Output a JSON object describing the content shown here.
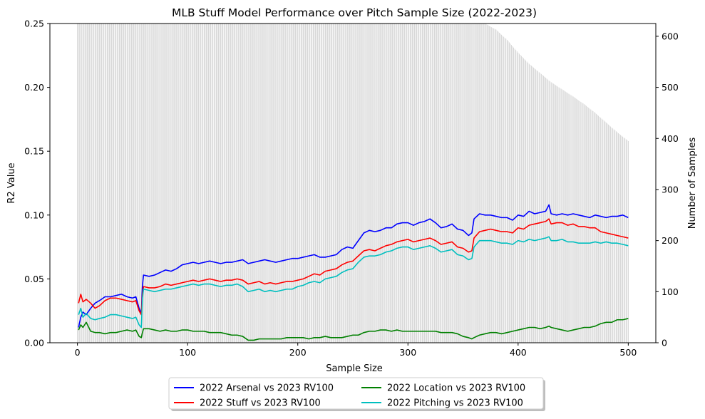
{
  "chart_data": {
    "type": "line",
    "title": "MLB Stuff Model Performance over Pitch Sample Size (2022-2023)",
    "xlabel": "Sample Size",
    "ylabel": "R2 Value",
    "ylabel_right": "Number of Samples",
    "xlim": [
      -25,
      525
    ],
    "ylim": [
      0,
      0.25
    ],
    "ylim_right": [
      0,
      625
    ],
    "x_ticks": [
      0,
      100,
      200,
      300,
      400,
      500
    ],
    "y_ticks": [
      0.0,
      0.05,
      0.1,
      0.15,
      0.2,
      0.25
    ],
    "y_tick_labels": [
      "0.00",
      "0.05",
      "0.10",
      "0.15",
      "0.20",
      "0.25"
    ],
    "y_right_ticks": [
      0,
      100,
      200,
      300,
      400,
      500,
      600
    ],
    "grid": false,
    "legend_placement": "bottom-center",
    "bars": {
      "name": "Number of Samples",
      "color": "#c8c8c8",
      "x": [
        0,
        370,
        380,
        390,
        400,
        410,
        420,
        430,
        440,
        450,
        460,
        470,
        480,
        490,
        500
      ],
      "values": [
        625,
        625,
        613,
        593,
        568,
        546,
        528,
        510,
        496,
        482,
        467,
        450,
        431,
        412,
        395
      ]
    },
    "series": [
      {
        "name": "2022 Arsenal vs 2023 RV100",
        "color": "#0000ff",
        "x": [
          1,
          3,
          5,
          8,
          12,
          16,
          20,
          25,
          30,
          35,
          40,
          45,
          50,
          53,
          56,
          58,
          59,
          60,
          65,
          70,
          75,
          80,
          85,
          90,
          95,
          100,
          105,
          110,
          115,
          120,
          125,
          130,
          135,
          140,
          145,
          150,
          155,
          160,
          165,
          170,
          175,
          180,
          185,
          190,
          195,
          200,
          205,
          210,
          215,
          220,
          225,
          230,
          235,
          240,
          245,
          250,
          255,
          260,
          265,
          270,
          275,
          280,
          285,
          290,
          295,
          300,
          305,
          310,
          315,
          320,
          325,
          330,
          335,
          340,
          345,
          350,
          355,
          358,
          360,
          365,
          370,
          375,
          380,
          385,
          390,
          395,
          400,
          405,
          410,
          415,
          420,
          425,
          428,
          430,
          435,
          440,
          445,
          450,
          455,
          460,
          465,
          470,
          475,
          480,
          485,
          490,
          495,
          500
        ],
        "values": [
          0.012,
          0.02,
          0.024,
          0.022,
          0.027,
          0.031,
          0.033,
          0.036,
          0.036,
          0.037,
          0.038,
          0.036,
          0.035,
          0.036,
          0.027,
          0.023,
          0.045,
          0.053,
          0.052,
          0.053,
          0.055,
          0.057,
          0.056,
          0.058,
          0.061,
          0.062,
          0.063,
          0.062,
          0.063,
          0.064,
          0.063,
          0.062,
          0.063,
          0.063,
          0.064,
          0.065,
          0.062,
          0.063,
          0.064,
          0.065,
          0.064,
          0.063,
          0.064,
          0.065,
          0.066,
          0.066,
          0.067,
          0.068,
          0.069,
          0.067,
          0.067,
          0.068,
          0.069,
          0.073,
          0.075,
          0.074,
          0.08,
          0.086,
          0.088,
          0.087,
          0.088,
          0.09,
          0.09,
          0.093,
          0.094,
          0.094,
          0.092,
          0.094,
          0.095,
          0.097,
          0.094,
          0.09,
          0.091,
          0.093,
          0.089,
          0.088,
          0.084,
          0.086,
          0.097,
          0.101,
          0.1,
          0.1,
          0.099,
          0.098,
          0.098,
          0.096,
          0.1,
          0.099,
          0.103,
          0.101,
          0.102,
          0.103,
          0.108,
          0.101,
          0.1,
          0.101,
          0.1,
          0.101,
          0.1,
          0.099,
          0.098,
          0.1,
          0.099,
          0.098,
          0.099,
          0.099,
          0.1,
          0.098
        ]
      },
      {
        "name": "2022 Stuff vs 2023 RV100",
        "color": "#ff0000",
        "x": [
          1,
          3,
          5,
          8,
          12,
          16,
          20,
          25,
          30,
          35,
          40,
          45,
          50,
          53,
          56,
          58,
          59,
          60,
          65,
          70,
          75,
          80,
          85,
          90,
          95,
          100,
          105,
          110,
          115,
          120,
          125,
          130,
          135,
          140,
          145,
          150,
          155,
          160,
          165,
          170,
          175,
          180,
          185,
          190,
          195,
          200,
          205,
          210,
          215,
          220,
          225,
          230,
          235,
          240,
          245,
          250,
          255,
          260,
          265,
          270,
          275,
          280,
          285,
          290,
          295,
          300,
          305,
          310,
          315,
          320,
          325,
          330,
          335,
          340,
          345,
          350,
          355,
          358,
          360,
          365,
          370,
          375,
          380,
          385,
          390,
          395,
          400,
          405,
          410,
          415,
          420,
          425,
          428,
          430,
          435,
          440,
          445,
          450,
          455,
          460,
          465,
          470,
          475,
          480,
          485,
          490,
          495,
          500
        ],
        "values": [
          0.031,
          0.038,
          0.032,
          0.034,
          0.031,
          0.027,
          0.029,
          0.033,
          0.035,
          0.035,
          0.034,
          0.033,
          0.032,
          0.033,
          0.025,
          0.022,
          0.038,
          0.044,
          0.043,
          0.043,
          0.044,
          0.046,
          0.045,
          0.046,
          0.047,
          0.048,
          0.049,
          0.048,
          0.049,
          0.05,
          0.049,
          0.048,
          0.049,
          0.049,
          0.05,
          0.049,
          0.046,
          0.047,
          0.048,
          0.046,
          0.047,
          0.046,
          0.047,
          0.048,
          0.048,
          0.049,
          0.05,
          0.052,
          0.054,
          0.053,
          0.056,
          0.057,
          0.058,
          0.061,
          0.063,
          0.064,
          0.068,
          0.072,
          0.073,
          0.072,
          0.074,
          0.076,
          0.077,
          0.079,
          0.08,
          0.081,
          0.079,
          0.08,
          0.081,
          0.082,
          0.08,
          0.077,
          0.078,
          0.079,
          0.075,
          0.074,
          0.071,
          0.072,
          0.082,
          0.087,
          0.088,
          0.089,
          0.088,
          0.087,
          0.087,
          0.086,
          0.09,
          0.089,
          0.092,
          0.093,
          0.094,
          0.095,
          0.097,
          0.093,
          0.094,
          0.094,
          0.092,
          0.093,
          0.091,
          0.091,
          0.09,
          0.09,
          0.087,
          0.086,
          0.085,
          0.084,
          0.083,
          0.082
        ]
      },
      {
        "name": "2022 Location vs 2023 RV100",
        "color": "#008000",
        "x": [
          1,
          3,
          5,
          8,
          12,
          16,
          20,
          25,
          30,
          35,
          40,
          45,
          50,
          53,
          56,
          58,
          59,
          60,
          65,
          70,
          75,
          80,
          85,
          90,
          95,
          100,
          105,
          110,
          115,
          120,
          125,
          130,
          135,
          140,
          145,
          150,
          155,
          160,
          165,
          170,
          175,
          180,
          185,
          190,
          195,
          200,
          205,
          210,
          215,
          220,
          225,
          230,
          235,
          240,
          245,
          250,
          255,
          260,
          265,
          270,
          275,
          280,
          285,
          290,
          295,
          300,
          305,
          310,
          315,
          320,
          325,
          330,
          335,
          340,
          345,
          350,
          355,
          358,
          360,
          365,
          370,
          375,
          380,
          385,
          390,
          395,
          400,
          405,
          410,
          415,
          420,
          425,
          428,
          430,
          435,
          440,
          445,
          450,
          455,
          460,
          465,
          470,
          475,
          480,
          485,
          490,
          495,
          500
        ],
        "values": [
          0.01,
          0.014,
          0.012,
          0.016,
          0.009,
          0.008,
          0.008,
          0.007,
          0.008,
          0.008,
          0.009,
          0.01,
          0.009,
          0.01,
          0.005,
          0.004,
          0.008,
          0.011,
          0.011,
          0.01,
          0.009,
          0.01,
          0.009,
          0.009,
          0.01,
          0.01,
          0.009,
          0.009,
          0.009,
          0.008,
          0.008,
          0.008,
          0.007,
          0.006,
          0.006,
          0.005,
          0.002,
          0.002,
          0.003,
          0.003,
          0.003,
          0.003,
          0.003,
          0.004,
          0.004,
          0.004,
          0.004,
          0.003,
          0.004,
          0.004,
          0.005,
          0.004,
          0.004,
          0.004,
          0.005,
          0.006,
          0.006,
          0.008,
          0.009,
          0.009,
          0.01,
          0.01,
          0.009,
          0.01,
          0.009,
          0.009,
          0.009,
          0.009,
          0.009,
          0.009,
          0.009,
          0.008,
          0.008,
          0.008,
          0.007,
          0.005,
          0.004,
          0.003,
          0.004,
          0.006,
          0.007,
          0.008,
          0.008,
          0.007,
          0.008,
          0.009,
          0.01,
          0.011,
          0.012,
          0.012,
          0.011,
          0.012,
          0.013,
          0.012,
          0.011,
          0.01,
          0.009,
          0.01,
          0.011,
          0.012,
          0.012,
          0.013,
          0.015,
          0.016,
          0.016,
          0.018,
          0.018,
          0.019
        ]
      },
      {
        "name": "2022 Pitching vs 2023 RV100",
        "color": "#00bfbf",
        "x": [
          1,
          3,
          5,
          8,
          12,
          16,
          20,
          25,
          30,
          35,
          40,
          45,
          50,
          53,
          56,
          58,
          59,
          60,
          65,
          70,
          75,
          80,
          85,
          90,
          95,
          100,
          105,
          110,
          115,
          120,
          125,
          130,
          135,
          140,
          145,
          150,
          155,
          160,
          165,
          170,
          175,
          180,
          185,
          190,
          195,
          200,
          205,
          210,
          215,
          220,
          225,
          230,
          235,
          240,
          245,
          250,
          255,
          260,
          265,
          270,
          275,
          280,
          285,
          290,
          295,
          300,
          305,
          310,
          315,
          320,
          325,
          330,
          335,
          340,
          345,
          350,
          355,
          358,
          360,
          365,
          370,
          375,
          380,
          385,
          390,
          395,
          400,
          405,
          410,
          415,
          420,
          425,
          428,
          430,
          435,
          440,
          445,
          450,
          455,
          460,
          465,
          470,
          475,
          480,
          485,
          490,
          495,
          500
        ],
        "values": [
          0.022,
          0.027,
          0.02,
          0.023,
          0.019,
          0.018,
          0.019,
          0.02,
          0.022,
          0.022,
          0.021,
          0.02,
          0.019,
          0.02,
          0.014,
          0.012,
          0.035,
          0.042,
          0.041,
          0.04,
          0.041,
          0.042,
          0.042,
          0.043,
          0.044,
          0.045,
          0.046,
          0.045,
          0.046,
          0.046,
          0.045,
          0.044,
          0.045,
          0.045,
          0.046,
          0.044,
          0.04,
          0.041,
          0.042,
          0.04,
          0.041,
          0.04,
          0.041,
          0.042,
          0.042,
          0.044,
          0.045,
          0.047,
          0.048,
          0.047,
          0.05,
          0.051,
          0.052,
          0.055,
          0.057,
          0.058,
          0.063,
          0.067,
          0.068,
          0.068,
          0.069,
          0.071,
          0.072,
          0.074,
          0.075,
          0.075,
          0.073,
          0.074,
          0.075,
          0.076,
          0.074,
          0.071,
          0.072,
          0.073,
          0.069,
          0.068,
          0.065,
          0.066,
          0.075,
          0.08,
          0.08,
          0.08,
          0.079,
          0.078,
          0.078,
          0.077,
          0.08,
          0.079,
          0.081,
          0.08,
          0.081,
          0.082,
          0.083,
          0.08,
          0.08,
          0.081,
          0.079,
          0.079,
          0.078,
          0.078,
          0.078,
          0.079,
          0.078,
          0.079,
          0.078,
          0.078,
          0.077,
          0.076
        ]
      }
    ]
  }
}
